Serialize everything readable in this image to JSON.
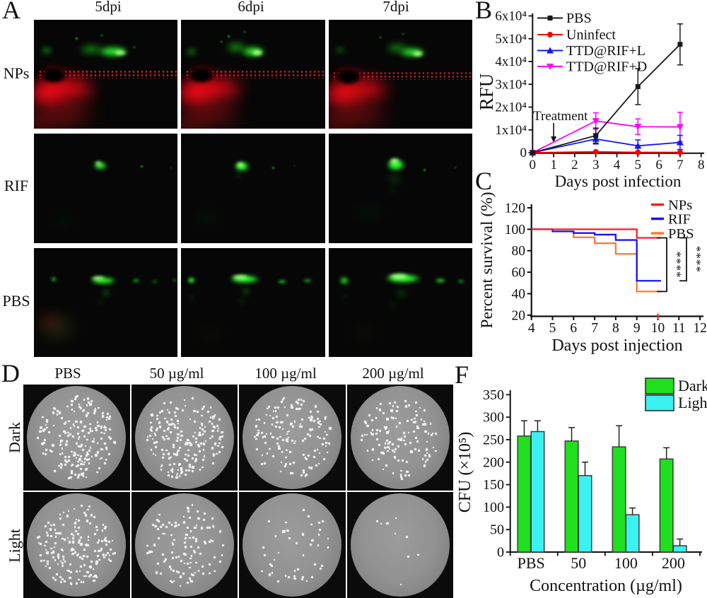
{
  "colors": {
    "g": "#2bff2b",
    "gb": "#a6ff85",
    "gd": "#17b517",
    "r": "#fb0a18",
    "rd": "#8f0f12",
    "k": "#000000",
    "ol": "#4f5a20",
    "spk": "spk",
    "axis": "#111111",
    "pbs_black": "#1a1a1a",
    "uninfect_red": "#ff0000",
    "ttd_l_blue": "#1414ff",
    "ttd_d_magenta": "#ff00ff",
    "nps_red": "#ff1b1b",
    "rif_blue": "#1414ff",
    "pbs_orange": "#ff7a28",
    "dark_green": "#1fdf1f",
    "light_cyan": "#3af2f2"
  },
  "panel_a": {
    "label": "A",
    "col_headers": [
      "5dpi",
      "6dpi",
      "7dpi"
    ],
    "row_labels": [
      "NPs",
      "RIF",
      "PBS"
    ],
    "cells": [
      {
        "row": "NPs",
        "col": "5dpi",
        "blobs": [
          [
            22,
            63,
            130,
            55,
            "r",
            10,
            0.85
          ],
          [
            10,
            68,
            80,
            55,
            "r",
            9,
            0.9
          ],
          [
            20,
            85,
            130,
            60,
            "rd",
            14,
            0.75
          ],
          [
            5,
            95,
            60,
            50,
            "rd",
            12,
            0.6
          ],
          [
            52,
            50,
            200,
            12,
            "spk",
            0,
            0.85
          ],
          [
            14,
            51,
            52,
            34,
            "r",
            5,
            0.6
          ],
          [
            14,
            51,
            40,
            25,
            "k",
            2,
            1
          ],
          [
            40,
            27,
            46,
            16,
            "gd",
            5,
            0.85
          ],
          [
            55,
            29,
            62,
            20,
            "g",
            4,
            0.95
          ],
          [
            60,
            30,
            26,
            11,
            "gb",
            2,
            1
          ],
          [
            9,
            28,
            22,
            11,
            "gd",
            4,
            0.85
          ],
          [
            30,
            17,
            5,
            5,
            "g",
            1,
            0.9
          ],
          [
            47,
            14,
            4,
            4,
            "g",
            1,
            0.8
          ],
          [
            70,
            25,
            4,
            4,
            "g",
            1,
            0.7
          ]
        ]
      },
      {
        "row": "NPs",
        "col": "6dpi",
        "blobs": [
          [
            22,
            63,
            130,
            55,
            "r",
            10,
            0.85
          ],
          [
            10,
            68,
            80,
            55,
            "r",
            9,
            0.9
          ],
          [
            20,
            85,
            130,
            60,
            "rd",
            14,
            0.72
          ],
          [
            5,
            95,
            60,
            50,
            "rd",
            12,
            0.6
          ],
          [
            52,
            50,
            200,
            12,
            "spk",
            0,
            0.8
          ],
          [
            14,
            51,
            52,
            34,
            "r",
            5,
            0.6
          ],
          [
            14,
            51,
            40,
            25,
            "k",
            2,
            1
          ],
          [
            38,
            25,
            40,
            18,
            "gd",
            5,
            0.85
          ],
          [
            50,
            29,
            48,
            20,
            "g",
            4,
            0.95
          ],
          [
            53,
            30,
            24,
            13,
            "gb",
            2,
            1
          ],
          [
            7,
            29,
            20,
            12,
            "gd",
            4,
            0.8
          ],
          [
            33,
            15,
            5,
            5,
            "g",
            1,
            0.85
          ],
          [
            44,
            11,
            4,
            4,
            "g",
            1,
            0.8
          ],
          [
            28,
            20,
            4,
            4,
            "g",
            1,
            0.8
          ]
        ]
      },
      {
        "row": "NPs",
        "col": "7dpi",
        "blobs": [
          [
            22,
            64,
            130,
            55,
            "r",
            10,
            0.8
          ],
          [
            10,
            69,
            80,
            55,
            "r",
            9,
            0.85
          ],
          [
            20,
            86,
            130,
            60,
            "rd",
            14,
            0.7
          ],
          [
            5,
            95,
            60,
            50,
            "rd",
            12,
            0.55
          ],
          [
            52,
            51,
            200,
            12,
            "spk",
            0,
            0.75
          ],
          [
            14,
            52,
            52,
            34,
            "r",
            5,
            0.55
          ],
          [
            14,
            52,
            40,
            25,
            "k",
            2,
            1
          ],
          [
            48,
            26,
            44,
            16,
            "gd",
            5,
            0.8
          ],
          [
            58,
            30,
            52,
            18,
            "g",
            4,
            0.95
          ],
          [
            62,
            31,
            24,
            12,
            "gb",
            2,
            1
          ],
          [
            8,
            28,
            18,
            10,
            "gd",
            4,
            0.7
          ],
          [
            36,
            16,
            4,
            4,
            "g",
            1,
            0.8
          ],
          [
            52,
            13,
            4,
            4,
            "g",
            1,
            0.7
          ]
        ]
      },
      {
        "row": "RIF",
        "col": "5dpi",
        "blobs": [
          [
            20,
            80,
            50,
            14,
            "gd",
            8,
            0.12
          ],
          [
            46,
            29,
            26,
            15,
            "g",
            3,
            1
          ],
          [
            45,
            27,
            14,
            8,
            "gb",
            2,
            1
          ],
          [
            75,
            30,
            5,
            5,
            "g",
            1,
            0.8
          ],
          [
            95,
            31,
            3,
            3,
            "g",
            1,
            0.5
          ]
        ]
      },
      {
        "row": "RIF",
        "col": "6dpi",
        "blobs": [
          [
            18,
            77,
            55,
            16,
            "gd",
            8,
            0.14
          ],
          [
            42,
            30,
            30,
            19,
            "g",
            3,
            1
          ],
          [
            41,
            28,
            16,
            10,
            "gb",
            2,
            1
          ],
          [
            40,
            38,
            10,
            8,
            "gd",
            4,
            0.5
          ],
          [
            64,
            31,
            5,
            5,
            "g",
            1,
            0.8
          ],
          [
            79,
            29,
            3,
            3,
            "g",
            1,
            0.6
          ]
        ]
      },
      {
        "row": "RIF",
        "col": "7dpi",
        "blobs": [
          [
            28,
            72,
            60,
            18,
            "gd",
            9,
            0.13
          ],
          [
            47,
            28,
            36,
            24,
            "g",
            3,
            1
          ],
          [
            46,
            25,
            20,
            12,
            "gb",
            2,
            1
          ],
          [
            46,
            41,
            16,
            18,
            "gd",
            6,
            0.55
          ],
          [
            44,
            52,
            8,
            7,
            "gd",
            4,
            0.4
          ],
          [
            67,
            33,
            5,
            5,
            "g",
            1,
            0.8
          ],
          [
            88,
            31,
            4,
            4,
            "g",
            1,
            0.5
          ]
        ]
      },
      {
        "row": "PBS",
        "col": "5dpi",
        "blobs": [
          [
            16,
            73,
            75,
            45,
            "ol",
            12,
            0.45
          ],
          [
            11,
            67,
            45,
            26,
            "rd",
            9,
            0.45
          ],
          [
            48,
            30,
            52,
            14,
            "g",
            3,
            1
          ],
          [
            45,
            28,
            30,
            9,
            "gb",
            2,
            1
          ],
          [
            14,
            29,
            10,
            8,
            "g",
            2,
            0.9
          ],
          [
            71,
            30,
            15,
            6,
            "g",
            2,
            0.8
          ],
          [
            84,
            31,
            10,
            5,
            "g",
            2,
            0.65
          ],
          [
            98,
            30,
            8,
            5,
            "g",
            2,
            0.7
          ],
          [
            50,
            41,
            16,
            10,
            "gd",
            4,
            0.65
          ],
          [
            46,
            49,
            9,
            7,
            "gd",
            4,
            0.4
          ]
        ]
      },
      {
        "row": "PBS",
        "col": "6dpi",
        "blobs": [
          [
            20,
            80,
            55,
            20,
            "ol",
            11,
            0.2
          ],
          [
            44,
            29,
            62,
            16,
            "g",
            3,
            1
          ],
          [
            41,
            27,
            36,
            10,
            "gb",
            2,
            1
          ],
          [
            7,
            30,
            15,
            13,
            "g",
            2,
            0.9
          ],
          [
            70,
            31,
            18,
            7,
            "g",
            2,
            0.8
          ],
          [
            88,
            30,
            18,
            6,
            "g",
            2,
            0.8
          ],
          [
            45,
            40,
            14,
            12,
            "gd",
            4,
            0.65
          ],
          [
            42,
            49,
            10,
            8,
            "gd",
            4,
            0.45
          ],
          [
            7,
            45,
            8,
            7,
            "gd",
            3,
            0.4
          ]
        ]
      },
      {
        "row": "PBS",
        "col": "7dpi",
        "blobs": [
          [
            25,
            78,
            60,
            22,
            "ol",
            11,
            0.16
          ],
          [
            52,
            28,
            74,
            18,
            "g",
            3,
            1
          ],
          [
            49,
            26,
            42,
            12,
            "gb",
            2,
            1
          ],
          [
            11,
            30,
            18,
            14,
            "g",
            3,
            0.9
          ],
          [
            78,
            30,
            22,
            8,
            "g",
            2,
            0.85
          ],
          [
            92,
            31,
            14,
            6,
            "g",
            2,
            0.7
          ],
          [
            51,
            42,
            16,
            12,
            "gd",
            5,
            0.6
          ],
          [
            45,
            52,
            10,
            8,
            "gd",
            4,
            0.4
          ],
          [
            12,
            44,
            8,
            6,
            "gd",
            3,
            0.35
          ]
        ]
      }
    ]
  },
  "panel_d": {
    "label": "D",
    "col_headers": [
      "PBS",
      "50 µg/ml",
      "100 µg/ml",
      "200 µg/ml"
    ],
    "row_labels": [
      "Dark",
      "Light"
    ],
    "colonies": [
      [
        205,
        195,
        150,
        128
      ],
      [
        178,
        118,
        47,
        9
      ]
    ]
  },
  "panel_labels": {
    "b": "B",
    "c": "C",
    "f": "F"
  },
  "chart_data": [
    {
      "id": "B",
      "type": "line",
      "xlabel": "Days post infection",
      "ylabel": "RFU",
      "xlim": [
        0,
        8
      ],
      "ylim": [
        0,
        60000
      ],
      "xticks": [
        0,
        1,
        2,
        3,
        4,
        5,
        6,
        7,
        8
      ],
      "yticks": [
        0,
        10000,
        20000,
        30000,
        40000,
        50000,
        60000
      ],
      "ytick_labels": [
        "0",
        "1x10⁴",
        "2x10⁴",
        "3x10⁴",
        "4x10⁴",
        "5x10⁴",
        "6x10⁴"
      ],
      "x": [
        0,
        3,
        5,
        7
      ],
      "series": [
        {
          "name": "PBS",
          "color": "#1a1a1a",
          "marker": "square",
          "values": [
            0,
            7500,
            29000,
            47500
          ],
          "errors": [
            0,
            3300,
            7900,
            9000
          ]
        },
        {
          "name": "Uninfect",
          "color": "#ff0000",
          "marker": "circle",
          "values": [
            0,
            400,
            150,
            150
          ],
          "errors": [
            0,
            0,
            0,
            0
          ]
        },
        {
          "name": "TTD@RIF+L",
          "color": "#1414ff",
          "marker": "triangle-up",
          "values": [
            0,
            6000,
            3000,
            4500
          ],
          "errors": [
            0,
            2200,
            2600,
            3100
          ]
        },
        {
          "name": "TTD@RIF+D",
          "color": "#ff00ff",
          "marker": "triangle-down",
          "values": [
            0,
            13900,
            11400,
            11300
          ],
          "errors": [
            0,
            3600,
            3400,
            6400
          ]
        }
      ],
      "annotation": {
        "text": "Treatment",
        "arrow_x": 1
      },
      "legend_position": "top-left"
    },
    {
      "id": "C",
      "type": "step-line",
      "xlabel": "Days post injection",
      "ylabel": "Percent survival (%)",
      "xlim": [
        4,
        12
      ],
      "ylim": [
        20,
        120
      ],
      "xticks": [
        4,
        5,
        6,
        7,
        8,
        9,
        10,
        11,
        12
      ],
      "yticks": [
        20,
        40,
        60,
        80,
        100,
        120
      ],
      "series": [
        {
          "name": "NPs",
          "color": "#ff1b1b",
          "points": [
            [
              4,
              100
            ],
            [
              9,
              100
            ],
            [
              9,
              92
            ],
            [
              10.15,
              92
            ]
          ]
        },
        {
          "name": "RIF",
          "color": "#1414ff",
          "points": [
            [
              4,
              100
            ],
            [
              5,
              100
            ],
            [
              5,
              98
            ],
            [
              6,
              98
            ],
            [
              6,
              96.5
            ],
            [
              7,
              96.5
            ],
            [
              7,
              95
            ],
            [
              8,
              95
            ],
            [
              8,
              90
            ],
            [
              9,
              90
            ],
            [
              9,
              52
            ],
            [
              10.15,
              52
            ]
          ]
        },
        {
          "name": "PBS",
          "color": "#ff7a28",
          "points": [
            [
              4,
              100
            ],
            [
              5,
              100
            ],
            [
              5,
              98
            ],
            [
              6,
              98
            ],
            [
              6,
              92.5
            ],
            [
              7,
              92.5
            ],
            [
              7,
              87
            ],
            [
              8,
              87
            ],
            [
              8,
              77
            ],
            [
              9,
              77
            ],
            [
              9,
              42
            ],
            [
              10.2,
              42
            ]
          ]
        }
      ],
      "significance": [
        {
          "compare": [
            "NPs",
            "PBS"
          ],
          "label": "****"
        },
        {
          "compare": [
            "NPs",
            "RIF"
          ],
          "label": "****"
        }
      ],
      "censor_tick": {
        "x": 10,
        "color": "#ff1b1b"
      },
      "legend_position": "top-right"
    },
    {
      "id": "F",
      "type": "bar",
      "xlabel": "Concentration (µg/ml)",
      "ylabel": "CFU (×10⁵)",
      "categories": [
        "PBS",
        "50",
        "100",
        "200"
      ],
      "ylim": [
        0,
        350
      ],
      "ytick_step": 50,
      "series": [
        {
          "name": "Dark",
          "color": "#1fdf1f",
          "values": [
            258,
            247,
            234,
            207
          ],
          "errors": [
            34,
            30,
            47,
            25
          ]
        },
        {
          "name": "Light",
          "color": "#3af2f2",
          "values": [
            268,
            170,
            83,
            14
          ],
          "errors": [
            24,
            30,
            15,
            15
          ]
        }
      ],
      "legend_position": "top-right"
    }
  ]
}
